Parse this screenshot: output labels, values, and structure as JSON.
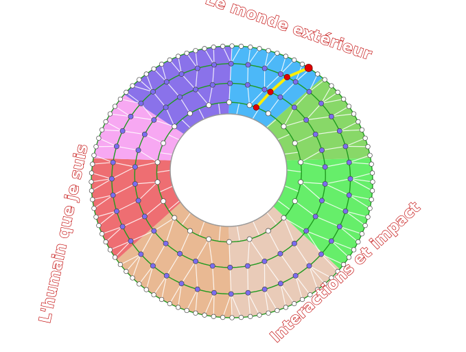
{
  "labels": {
    "top": "Le monde extérieur",
    "left": "L'humain que je suis",
    "right": "Interactions et impact"
  },
  "colors": {
    "label_stroke": "#c00000",
    "ring_line": "#1f9a1f",
    "highlight_line": "#ffee00",
    "highlight_point": "#e00000",
    "inner_point": "#7b6cf0",
    "outer_point": "#ffffff",
    "sectors": [
      "#4cb8f8",
      "#88d868",
      "#66ee6a",
      "#e9cbb8",
      "#e9b993",
      "#ee6e72",
      "#f7a8f2",
      "#8a72ea"
    ]
  }
}
